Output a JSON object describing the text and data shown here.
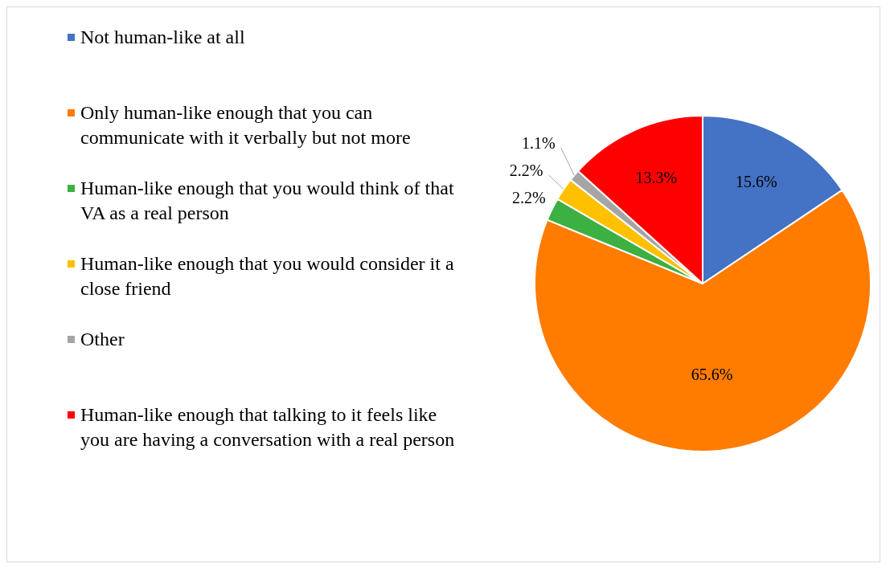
{
  "chart_data": {
    "type": "pie",
    "categories": [
      "Not human-like at all",
      "Only human-like enough that you can communicate with it verbally but not more",
      "Human-like enough that you would think of that VA as a real person",
      "Human-like enough that you would consider it a close friend",
      "Other",
      "Human-like enough that talking to it feels like you are having a conversation with a real person"
    ],
    "values": [
      15.6,
      65.6,
      2.2,
      2.2,
      1.1,
      13.3
    ],
    "colors": [
      "#4472c4",
      "#ff7c00",
      "#3cb043",
      "#ffc000",
      "#a5a5a5",
      "#ff0000"
    ],
    "value_labels": [
      "15.6%",
      "65.6%",
      "2.2%",
      "2.2%",
      "1.1%",
      "13.3%"
    ],
    "legend": "left"
  }
}
